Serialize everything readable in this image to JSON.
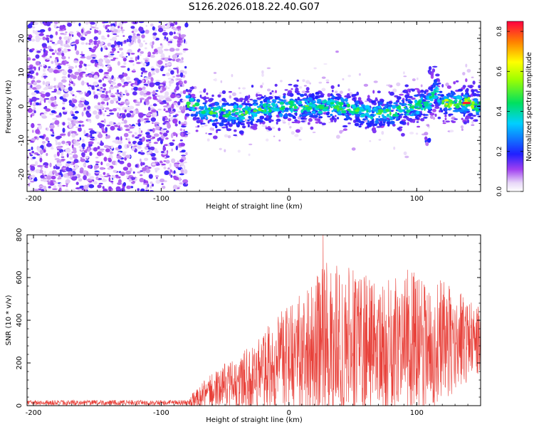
{
  "title": "S126.2026.018.22.40.G07",
  "chart_data": [
    {
      "type": "heatmap",
      "name": "spectrogram",
      "xlabel": "Height of straight line (km)",
      "ylabel": "Frequency (Hz)",
      "xlim": [
        -205,
        150
      ],
      "ylim": [
        -25,
        25
      ],
      "xticks": [
        -200,
        -100,
        0,
        100
      ],
      "yticks": [
        -20,
        -10,
        0,
        10,
        20
      ],
      "noise_region_x": [
        -205,
        -80
      ],
      "signal_region_x": [
        -80,
        150
      ],
      "signal_center_hz": [
        [
          -80,
          1
        ],
        [
          -60,
          -2
        ],
        [
          -40,
          -2
        ],
        [
          0,
          0
        ],
        [
          20,
          0
        ],
        [
          40,
          0
        ],
        [
          60,
          -2
        ],
        [
          80,
          -2
        ],
        [
          100,
          0
        ],
        [
          110,
          1
        ],
        [
          115,
          5
        ],
        [
          120,
          1
        ],
        [
          140,
          1
        ],
        [
          150,
          0
        ]
      ],
      "secondary_features": [
        {
          "x": 108,
          "y": -10
        },
        {
          "x": 112,
          "y": 10
        }
      ],
      "colorbar": {
        "label": "Normalized spectral amplitude",
        "range": [
          0,
          0.85
        ],
        "ticks": [
          0.0,
          0.2,
          0.4,
          0.6,
          0.8
        ],
        "tick_labels": [
          "0.0",
          "0.2",
          "0.4",
          "0.6",
          "0.8"
        ]
      }
    },
    {
      "type": "line",
      "name": "snr",
      "xlabel": "Height of straight line (km)",
      "ylabel": "SNR (10 * v/v)",
      "xlim": [
        -205,
        150
      ],
      "ylim": [
        0,
        800
      ],
      "xticks": [
        -200,
        -100,
        0,
        100
      ],
      "yticks": [
        0,
        200,
        400,
        600,
        800
      ],
      "series_color": "#e8413a",
      "envelope": [
        {
          "x": -205,
          "mean": 14,
          "spread": 12
        },
        {
          "x": -80,
          "mean": 14,
          "spread": 12
        },
        {
          "x": -70,
          "mean": 40,
          "spread": 60
        },
        {
          "x": -50,
          "mean": 90,
          "spread": 110
        },
        {
          "x": -30,
          "mean": 130,
          "spread": 150
        },
        {
          "x": -10,
          "mean": 200,
          "spread": 220
        },
        {
          "x": 10,
          "mean": 240,
          "spread": 300
        },
        {
          "x": 30,
          "mean": 300,
          "spread": 380
        },
        {
          "x": 50,
          "mean": 300,
          "spread": 360
        },
        {
          "x": 70,
          "mean": 260,
          "spread": 300
        },
        {
          "x": 90,
          "mean": 300,
          "spread": 350
        },
        {
          "x": 110,
          "mean": 290,
          "spread": 320
        },
        {
          "x": 130,
          "mean": 300,
          "spread": 260
        },
        {
          "x": 150,
          "mean": 310,
          "spread": 150
        }
      ],
      "peak_snr": 800
    }
  ]
}
